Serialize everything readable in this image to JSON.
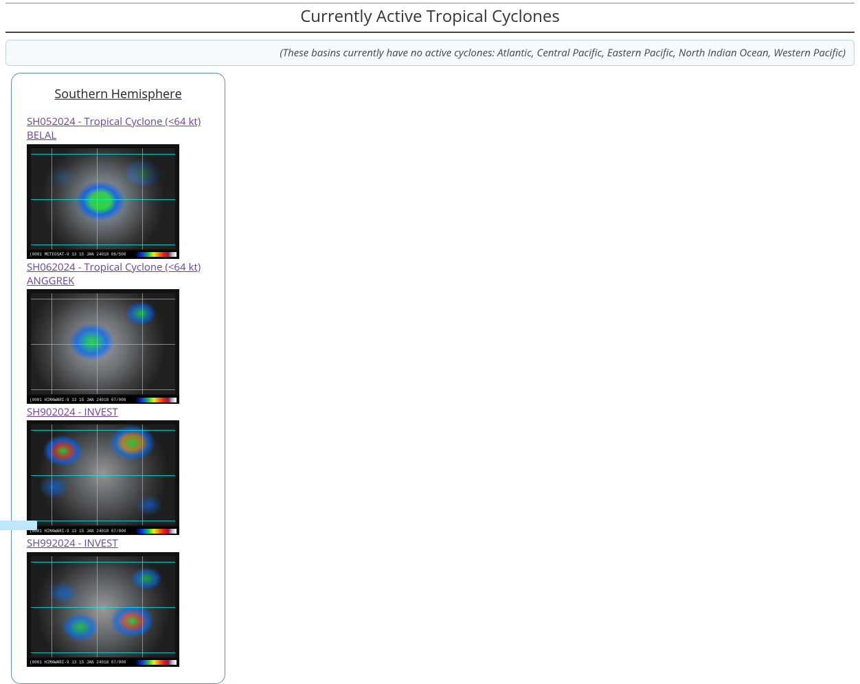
{
  "page_title": "Currently Active Tropical Cyclones",
  "notice_text": "(These basins currently have no active cyclones: Atlantic, Central Pacific, Eastern Pacific, North Indian Ocean, Western Pacific)",
  "region": {
    "title": "Southern Hemisphere",
    "cyclones": [
      {
        "link_text": "SH052024 - Tropical Cyclone (<64 kt) BELAL",
        "sat_source": "METEOSAT-9",
        "sat_timestamp": "15 JAN 24018 06/500",
        "variant": ""
      },
      {
        "link_text": "SH062024 - Tropical Cyclone (<64 kt) ANGGREK",
        "sat_source": "HIMAWARI-9",
        "sat_timestamp": "15 JAN 24018 07/000",
        "variant": "sat-variant2"
      },
      {
        "link_text": "SH902024 - INVEST",
        "sat_source": "HIMAWARI-9",
        "sat_timestamp": "15 JAN 24018 07/000",
        "variant": "sat-variant3"
      },
      {
        "link_text": "SH992024 - INVEST",
        "sat_source": "HIMAWARI-9",
        "sat_timestamp": "15 JAN 24018 07/000",
        "variant": "sat-variant4"
      }
    ]
  },
  "colors": {
    "link": "#6b3fa0",
    "panel_border": "#5a8fb5",
    "notice_border": "#b8d4e3",
    "notice_bg": "#f5fafd",
    "cyan_tab": "#bde6ff"
  }
}
